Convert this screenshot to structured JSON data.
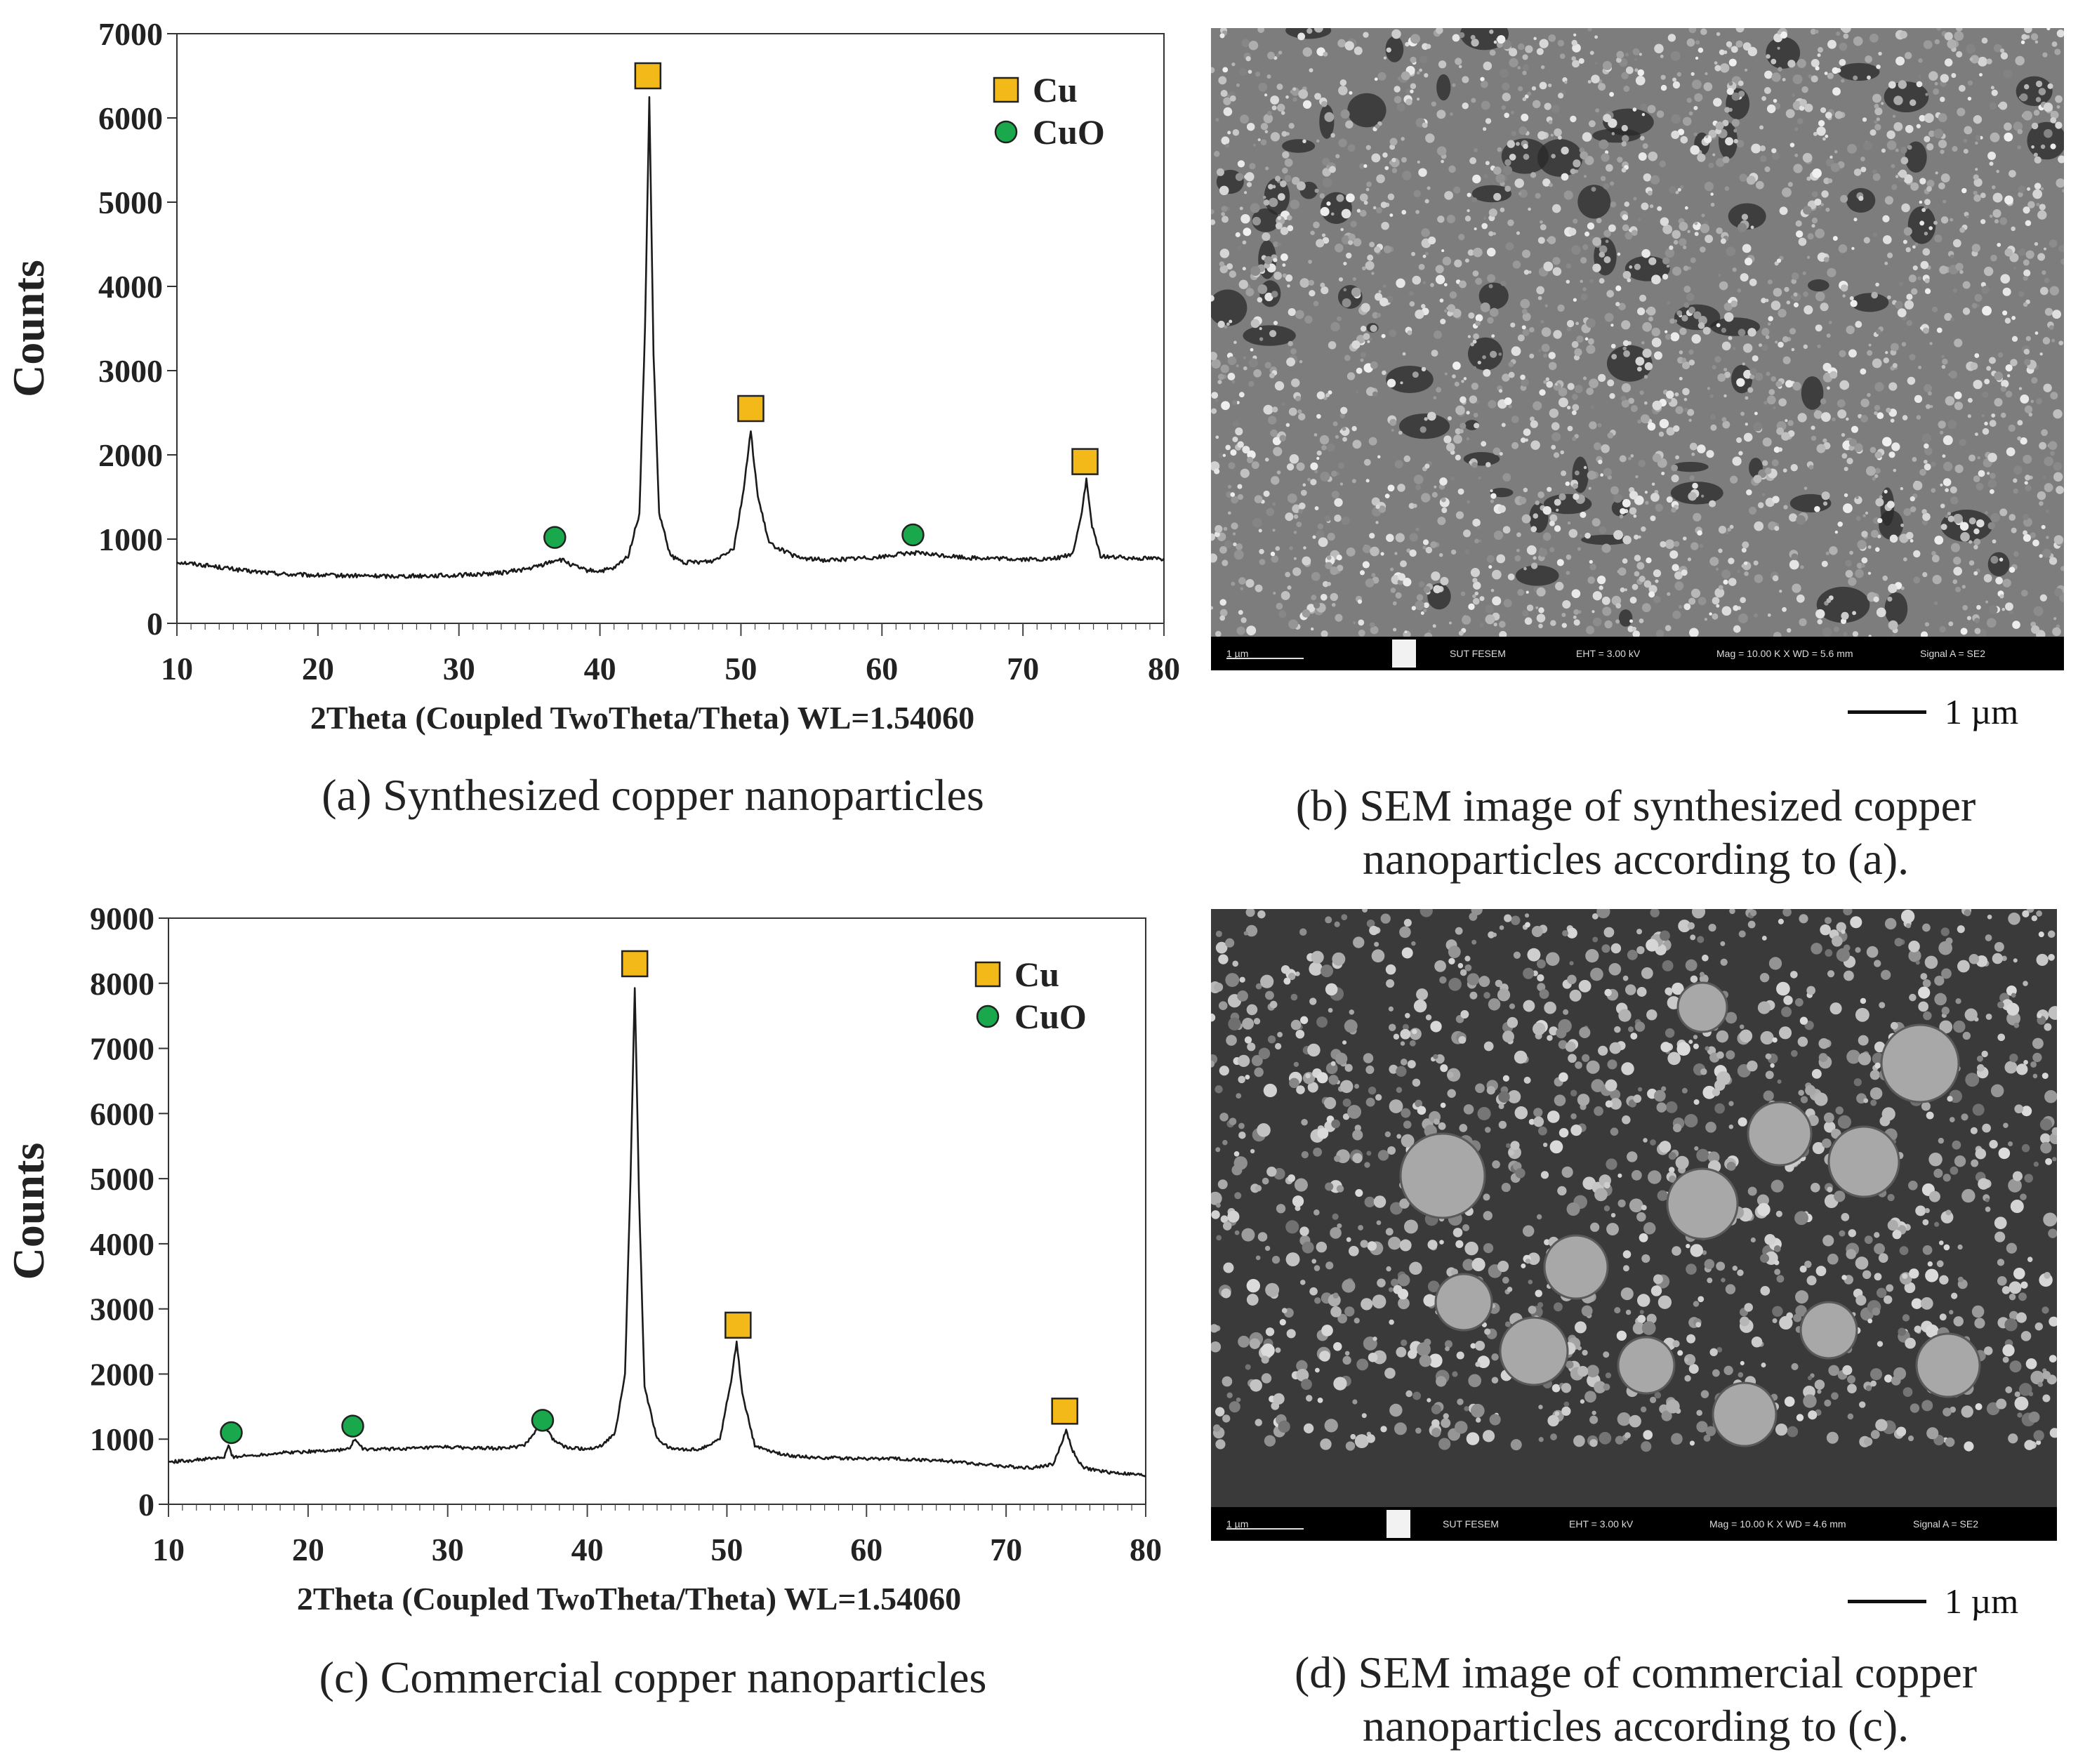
{
  "chart_data": [
    {
      "id": "a",
      "type": "line",
      "xlabel": "2Theta (Coupled TwoTheta/Theta) WL=1.54060",
      "ylabel": "Counts",
      "xlim": [
        10,
        80
      ],
      "ylim": [
        0,
        7000
      ],
      "xticks": [
        10,
        20,
        30,
        40,
        50,
        60,
        70,
        80
      ],
      "yticks": [
        0,
        1000,
        2000,
        3000,
        4000,
        5000,
        6000,
        7000
      ],
      "grid": false,
      "legend_position": "top-right",
      "legend": [
        {
          "label": "Cu",
          "marker": "square",
          "color": "#f2b918"
        },
        {
          "label": "CuO",
          "marker": "circle",
          "color": "#1aa84c"
        }
      ],
      "series": [
        {
          "x": [
            10,
            12,
            15,
            18,
            20,
            25,
            30,
            33,
            35,
            36,
            37,
            37.5,
            38,
            39,
            40,
            41,
            42,
            42.8,
            43.2,
            43.5,
            43.8,
            44.2,
            45,
            46,
            48,
            49.5,
            50.2,
            50.7,
            51.2,
            52,
            54,
            56,
            58,
            60,
            62,
            64,
            66,
            68,
            70,
            72,
            73.5,
            74.1,
            74.5,
            74.9,
            75.5,
            77,
            80
          ],
          "y": [
            730,
            690,
            620,
            580,
            570,
            560,
            570,
            600,
            650,
            700,
            760,
            740,
            690,
            630,
            620,
            650,
            800,
            1300,
            3500,
            6250,
            3200,
            1300,
            800,
            720,
            740,
            900,
            1600,
            2280,
            1500,
            950,
            780,
            750,
            770,
            790,
            840,
            810,
            780,
            770,
            760,
            760,
            820,
            1250,
            1700,
            1150,
            800,
            780,
            770
          ]
        }
      ],
      "peak_markers": [
        {
          "phase": "Cu",
          "x": 43.4,
          "y": 6500
        },
        {
          "phase": "Cu",
          "x": 50.7,
          "y": 2550
        },
        {
          "phase": "Cu",
          "x": 74.4,
          "y": 1920
        },
        {
          "phase": "CuO",
          "x": 36.8,
          "y": 1020
        },
        {
          "phase": "CuO",
          "x": 62.2,
          "y": 1050
        }
      ]
    },
    {
      "id": "c",
      "type": "line",
      "xlabel": "2Theta (Coupled TwoTheta/Theta) WL=1.54060",
      "ylabel": "Counts",
      "xlim": [
        10,
        80
      ],
      "ylim": [
        0,
        9000
      ],
      "xticks": [
        10,
        20,
        30,
        40,
        50,
        60,
        70,
        80
      ],
      "yticks": [
        0,
        1000,
        2000,
        3000,
        4000,
        5000,
        6000,
        7000,
        8000,
        9000
      ],
      "grid": false,
      "legend_position": "top-right",
      "legend": [
        {
          "label": "Cu",
          "marker": "square",
          "color": "#f2b918"
        },
        {
          "label": "CuO",
          "marker": "circle",
          "color": "#1aa84c"
        }
      ],
      "series": [
        {
          "x": [
            10,
            12,
            14,
            14.3,
            14.6,
            16,
            18,
            20,
            22,
            23,
            23.3,
            24,
            26,
            28,
            30,
            32,
            34,
            35.5,
            36.2,
            36.8,
            37.5,
            38.5,
            40,
            41,
            42,
            42.7,
            43.1,
            43.4,
            43.7,
            44.1,
            45,
            46,
            48,
            49.5,
            50.3,
            50.7,
            51.1,
            52,
            54,
            56,
            58,
            60,
            62,
            64,
            66,
            68,
            70,
            72,
            73.4,
            74.0,
            74.3,
            74.7,
            75.5,
            77,
            80
          ],
          "y": [
            650,
            680,
            720,
            900,
            730,
            750,
            790,
            810,
            830,
            850,
            1000,
            840,
            850,
            860,
            880,
            860,
            860,
            900,
            1100,
            1280,
            1000,
            870,
            850,
            900,
            1100,
            2000,
            5000,
            7950,
            4800,
            1800,
            1000,
            850,
            840,
            1000,
            1900,
            2500,
            1700,
            900,
            760,
            720,
            710,
            700,
            700,
            680,
            660,
            620,
            580,
            560,
            620,
            950,
            1150,
            850,
            560,
            500,
            440
          ]
        }
      ],
      "peak_markers": [
        {
          "phase": "Cu",
          "x": 43.4,
          "y": 8300
        },
        {
          "phase": "Cu",
          "x": 50.8,
          "y": 2750
        },
        {
          "phase": "Cu",
          "x": 74.2,
          "y": 1430
        },
        {
          "phase": "CuO",
          "x": 14.5,
          "y": 1100
        },
        {
          "phase": "CuO",
          "x": 23.2,
          "y": 1200
        },
        {
          "phase": "CuO",
          "x": 36.8,
          "y": 1290
        }
      ]
    }
  ],
  "captions": {
    "a": "(a) Synthesized copper nanoparticles",
    "b_line1": "(b) SEM image of synthesized copper",
    "b_line2": "nanoparticles according to (a).",
    "c": "(c) Commercial copper nanoparticles",
    "d_line1": "(d) SEM image of commercial copper",
    "d_line2": "nanoparticles according to (c)."
  },
  "sem_b": {
    "bar_scale": "1 µm",
    "bar_lab": "SUT FESEM",
    "bar_eht": "EHT = 3.00 kV",
    "bar_mag": "Mag = 10.00 K X  WD = 5.6 mm",
    "bar_signal": "Signal A = SE2",
    "scale_label": "1 µm"
  },
  "sem_d": {
    "bar_scale": "1 µm",
    "bar_lab": "SUT FESEM",
    "bar_eht": "EHT = 3.00 kV",
    "bar_mag": "Mag = 10.00 K X  WD = 4.6 mm",
    "bar_signal": "Signal A = SE2",
    "scale_label": "1 µm"
  }
}
